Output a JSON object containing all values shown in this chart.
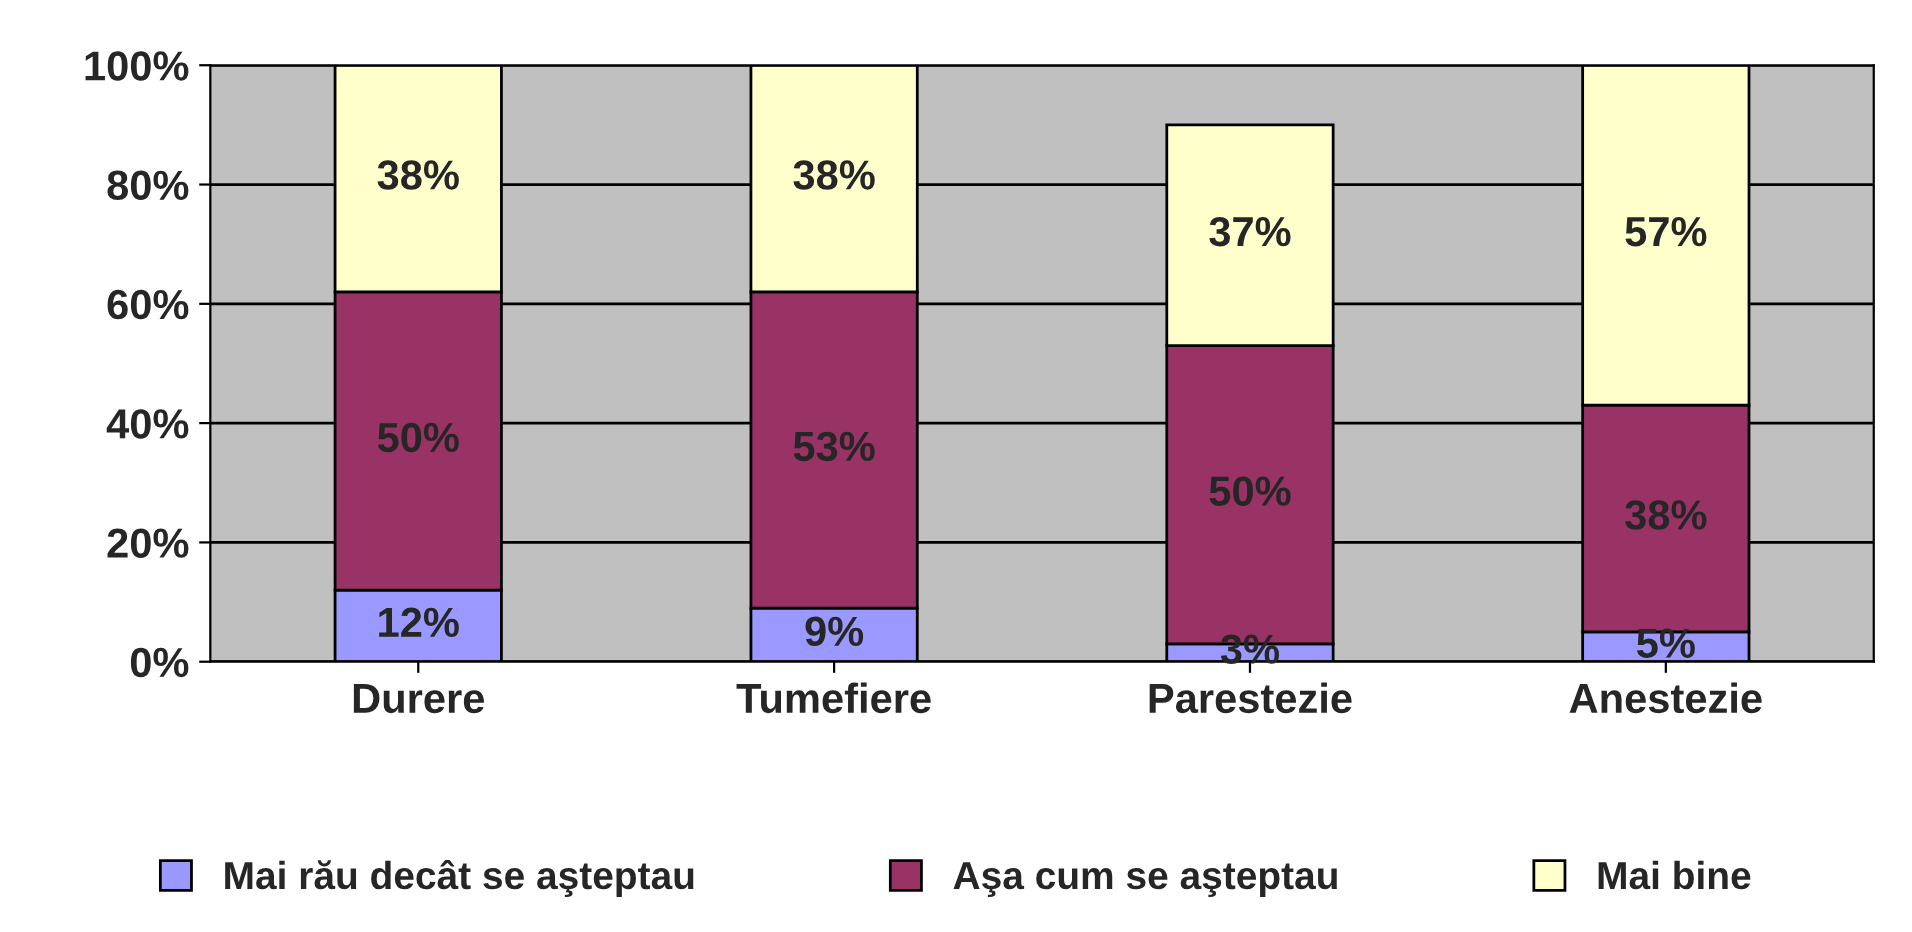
{
  "chart_data": {
    "type": "bar",
    "stacked": true,
    "categories": [
      "Durere",
      "Tumefiere",
      "Parestezie",
      "Anestezie"
    ],
    "series": [
      {
        "name": "Mai rău decât se aşteptau",
        "color": "#9999ff",
        "values": [
          12,
          9,
          3,
          5
        ],
        "value_labels": [
          "12%",
          "9%",
          "3%",
          "5%"
        ]
      },
      {
        "name": "Aşa cum se aşteptau",
        "color": "#993366",
        "values": [
          50,
          53,
          50,
          38
        ],
        "value_labels": [
          "50%",
          "53%",
          "50%",
          "38%"
        ]
      },
      {
        "name": "Mai bine",
        "color": "#ffffcc",
        "values": [
          38,
          38,
          37,
          57
        ],
        "value_labels": [
          "38%",
          "38%",
          "37%",
          "57%"
        ]
      }
    ],
    "ylim": [
      0,
      100
    ],
    "yticks": [
      {
        "value": 0,
        "label": "0%"
      },
      {
        "value": 20,
        "label": "20%"
      },
      {
        "value": 40,
        "label": "40%"
      },
      {
        "value": 60,
        "label": "60%"
      },
      {
        "value": 80,
        "label": "80%"
      },
      {
        "value": 100,
        "label": "100%"
      }
    ],
    "grid": "y",
    "legend": "bottom"
  }
}
